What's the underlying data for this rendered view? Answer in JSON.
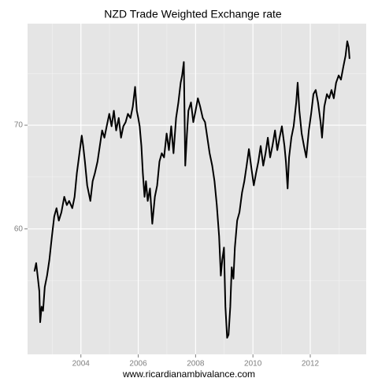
{
  "chart_data": {
    "type": "line",
    "title": "NZD Trade Weighted Exchange rate",
    "x_label": "www.ricardianambivalance.com",
    "x": [
      2002.38,
      2002.44,
      2002.49,
      2002.55,
      2002.58,
      2002.63,
      2002.68,
      2002.74,
      2002.82,
      2002.9,
      2002.99,
      2003.07,
      2003.15,
      2003.23,
      2003.32,
      2003.42,
      2003.51,
      2003.59,
      2003.7,
      2003.78,
      2003.86,
      2003.95,
      2004.03,
      2004.08,
      2004.14,
      2004.22,
      2004.33,
      2004.41,
      2004.49,
      2004.58,
      2004.66,
      2004.74,
      2004.82,
      2004.9,
      2004.99,
      2005.07,
      2005.15,
      2005.23,
      2005.32,
      2005.4,
      2005.48,
      2005.56,
      2005.64,
      2005.73,
      2005.81,
      2005.89,
      2005.95,
      2006.0,
      2006.05,
      2006.11,
      2006.16,
      2006.22,
      2006.27,
      2006.33,
      2006.41,
      2006.49,
      2006.58,
      2006.66,
      2006.74,
      2006.82,
      2006.9,
      2006.99,
      2007.07,
      2007.15,
      2007.23,
      2007.32,
      2007.4,
      2007.48,
      2007.53,
      2007.59,
      2007.64,
      2007.7,
      2007.75,
      2007.84,
      2007.92,
      2008.0,
      2008.08,
      2008.16,
      2008.25,
      2008.33,
      2008.41,
      2008.49,
      2008.58,
      2008.66,
      2008.74,
      2008.82,
      2008.88,
      2008.93,
      2008.99,
      2009.04,
      2009.1,
      2009.15,
      2009.21,
      2009.26,
      2009.32,
      2009.37,
      2009.45,
      2009.53,
      2009.62,
      2009.7,
      2009.78,
      2009.86,
      2009.95,
      2010.03,
      2010.11,
      2010.19,
      2010.27,
      2010.36,
      2010.44,
      2010.52,
      2010.6,
      2010.68,
      2010.77,
      2010.85,
      2010.93,
      2011.01,
      2011.1,
      2011.15,
      2011.21,
      2011.26,
      2011.34,
      2011.42,
      2011.51,
      2011.56,
      2011.62,
      2011.7,
      2011.78,
      2011.86,
      2011.95,
      2012.03,
      2012.11,
      2012.19,
      2012.27,
      2012.36,
      2012.41,
      2012.49,
      2012.58,
      2012.66,
      2012.74,
      2012.82,
      2012.9,
      2012.99,
      2013.07,
      2013.15,
      2013.23,
      2013.29,
      2013.34,
      2013.37
    ],
    "values": [
      55.9,
      56.7,
      55.5,
      54.0,
      51.0,
      52.5,
      52.1,
      54.4,
      55.5,
      57.0,
      59.3,
      61.2,
      62.0,
      60.8,
      61.6,
      63.1,
      62.3,
      62.7,
      62.0,
      63.1,
      65.4,
      67.3,
      69.0,
      68.0,
      66.5,
      64.2,
      62.7,
      64.6,
      65.4,
      66.5,
      68.0,
      69.5,
      68.8,
      69.9,
      71.1,
      69.9,
      71.4,
      69.5,
      70.7,
      68.8,
      69.9,
      70.3,
      71.1,
      70.7,
      71.8,
      73.7,
      71.4,
      70.7,
      69.9,
      68.0,
      65.4,
      63.1,
      64.6,
      62.7,
      63.9,
      60.5,
      63.1,
      64.2,
      66.5,
      67.3,
      66.9,
      69.2,
      67.6,
      69.9,
      67.3,
      70.7,
      72.2,
      74.1,
      74.8,
      76.1,
      66.1,
      69.2,
      71.4,
      72.2,
      70.3,
      71.4,
      72.6,
      71.8,
      70.7,
      70.3,
      68.8,
      67.3,
      66.1,
      64.6,
      62.3,
      59.3,
      55.5,
      57.0,
      58.2,
      52.5,
      49.5,
      49.8,
      52.5,
      56.3,
      55.2,
      58.2,
      60.8,
      61.6,
      63.5,
      64.6,
      66.1,
      67.7,
      65.8,
      64.2,
      65.4,
      66.5,
      68.0,
      66.1,
      67.3,
      68.8,
      66.9,
      68.0,
      69.5,
      67.6,
      68.8,
      69.9,
      68.0,
      66.5,
      63.9,
      66.9,
      68.8,
      69.9,
      72.2,
      74.1,
      71.4,
      69.2,
      68.0,
      66.9,
      69.5,
      71.1,
      73.0,
      73.4,
      72.2,
      70.3,
      68.8,
      71.8,
      73.0,
      72.6,
      73.4,
      72.6,
      74.1,
      74.8,
      74.4,
      75.6,
      76.7,
      78.1,
      77.5,
      76.4
    ],
    "color": "#000000",
    "xlim": [
      2002.14,
      2013.95
    ],
    "ylim": [
      47.9,
      79.8
    ],
    "xticks": [
      2004,
      2006,
      2008,
      2010,
      2012
    ],
    "yticks": [
      60,
      70
    ],
    "xminorticks": [
      2003,
      2005,
      2007,
      2009,
      2011,
      2013
    ],
    "yminorticks": [
      55,
      65,
      75
    ],
    "grid": true
  }
}
